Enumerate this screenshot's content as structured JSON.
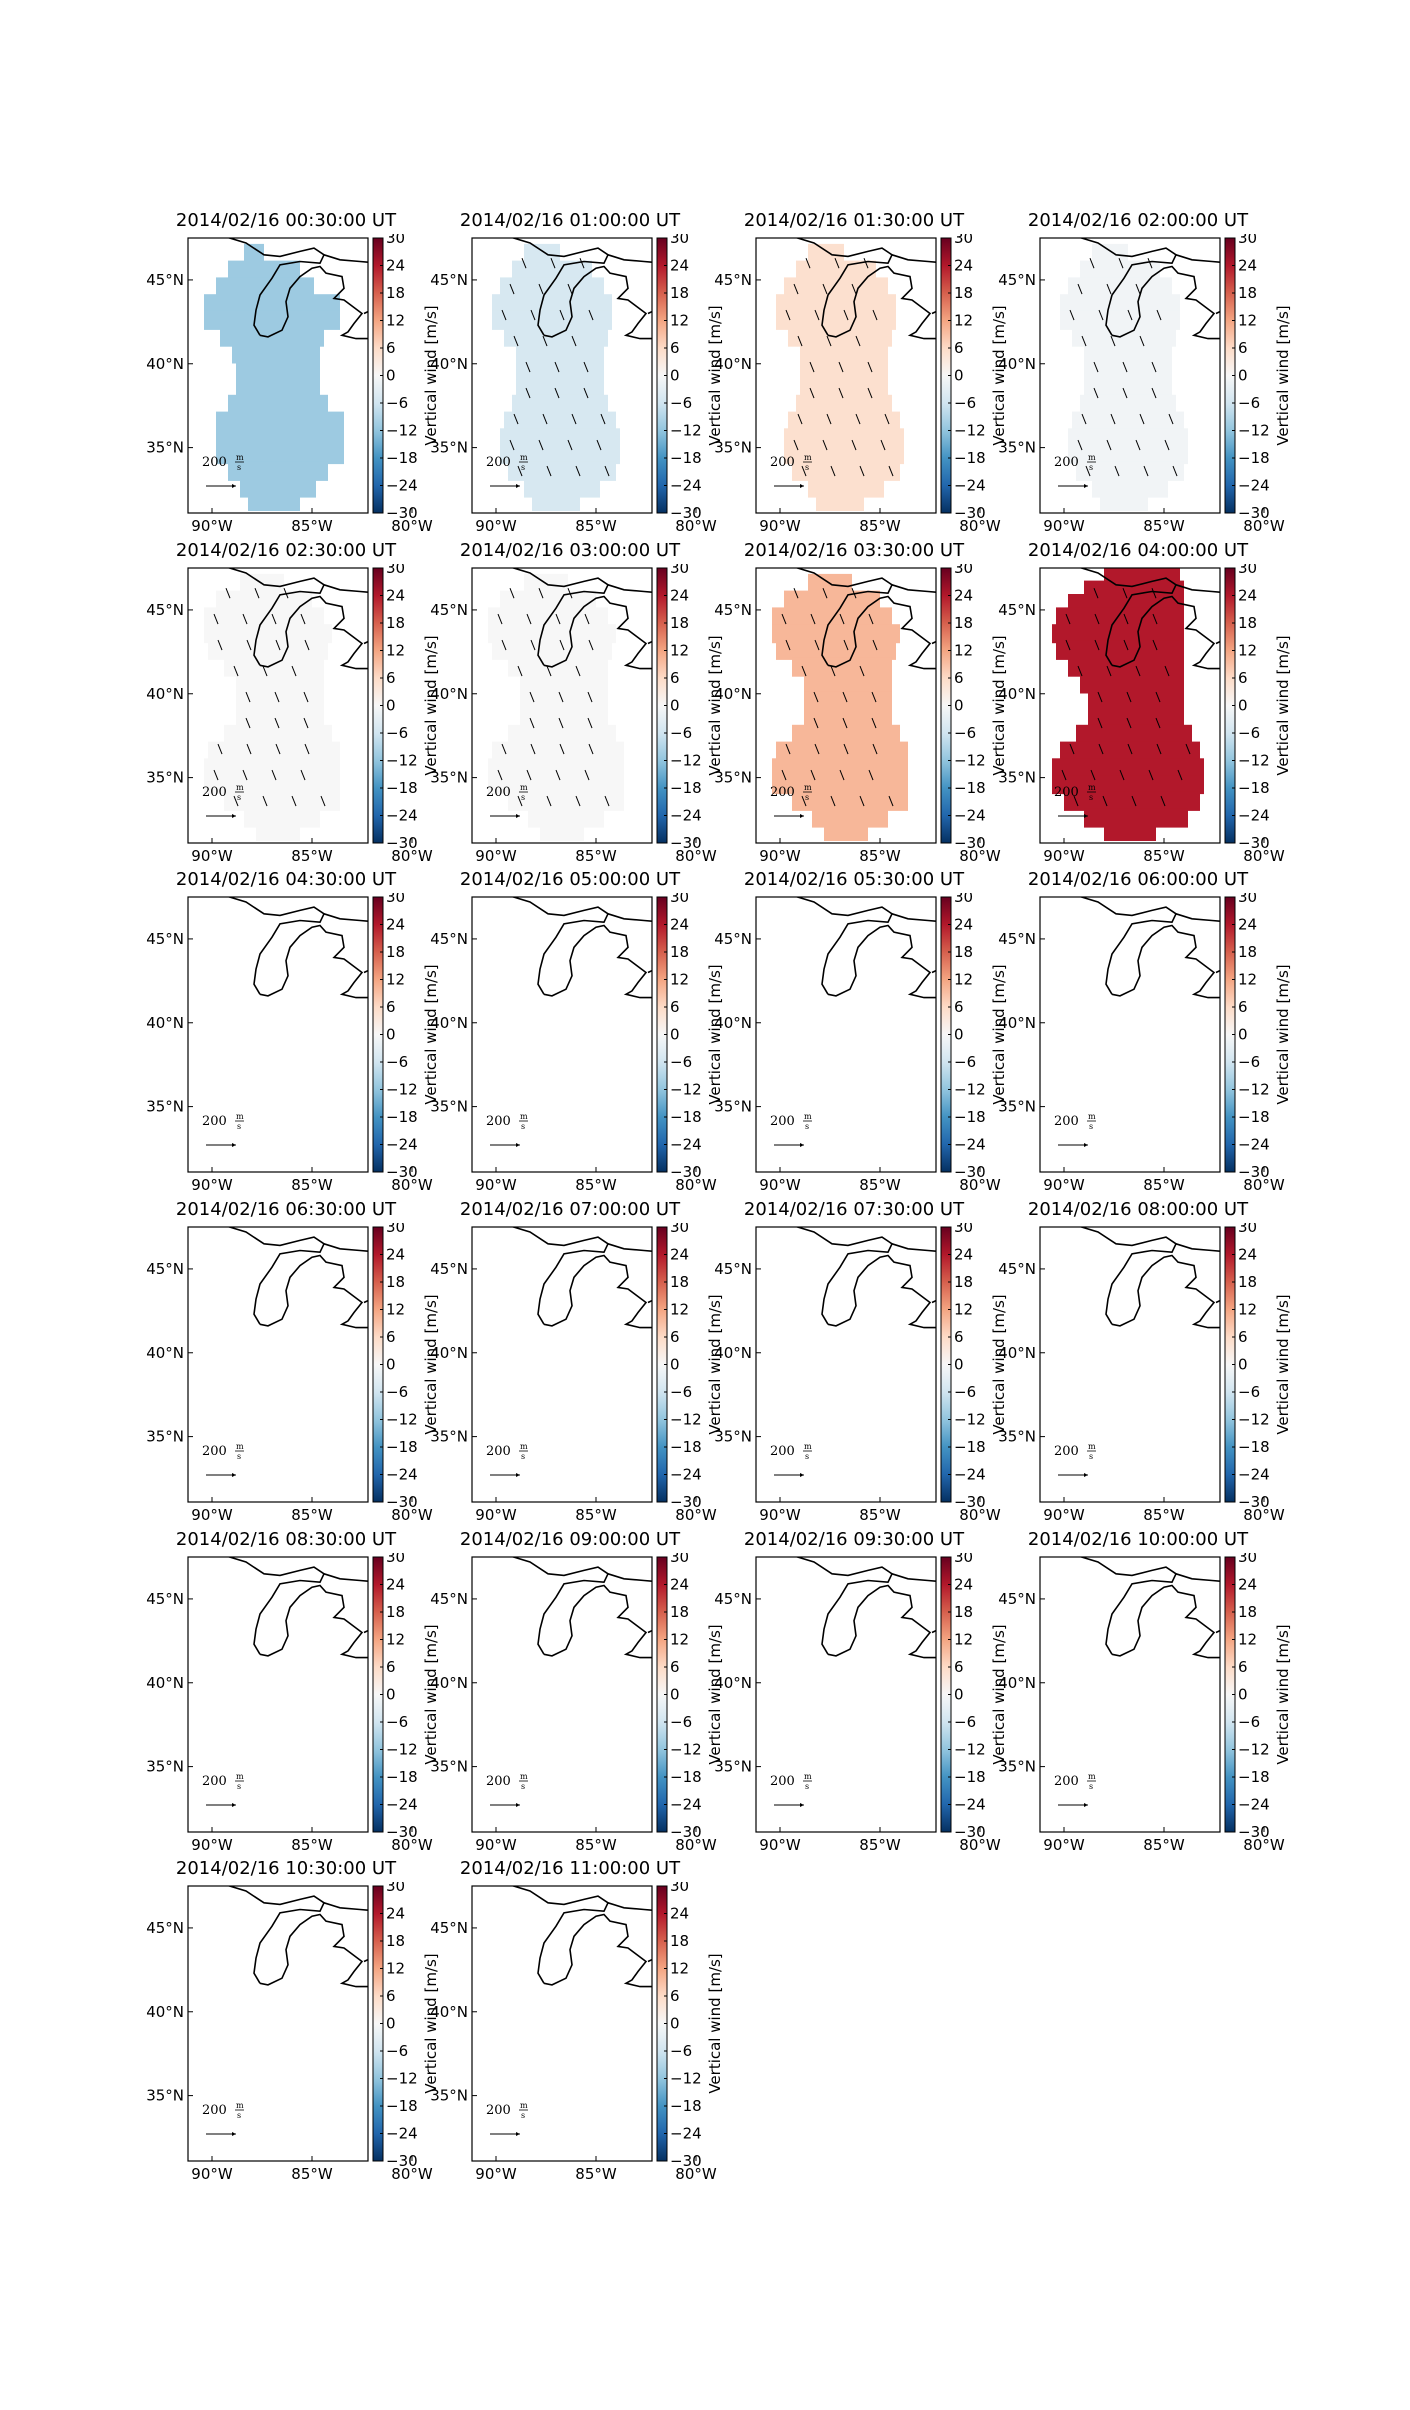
{
  "figure": {
    "colorbar": {
      "label": "Vertical wind [m/s]",
      "ticks": [
        30,
        24,
        18,
        12,
        6,
        0,
        -6,
        -12,
        -18,
        -24,
        -30
      ],
      "tick_labels": [
        "30",
        "24",
        "18",
        "12",
        "6",
        "0",
        "−6",
        "−12",
        "−18",
        "−24",
        "−30"
      ],
      "range": [
        -30,
        30
      ],
      "colormap": "red-white-blue"
    },
    "axes": {
      "lat_ticks": [
        "45°N",
        "40°N",
        "35°N"
      ],
      "lon_ticks": [
        "90°W",
        "85°W",
        "80°W"
      ]
    },
    "arrow_key": {
      "value": "200",
      "unit_num": "m",
      "unit_den": "s"
    },
    "panels": [
      {
        "title": "2014/02/16 00:30:00 UT",
        "value": -11,
        "data_shape": "a",
        "arrows": false
      },
      {
        "title": "2014/02/16 01:00:00 UT",
        "value": -5,
        "data_shape": "b",
        "arrows": true
      },
      {
        "title": "2014/02/16 01:30:00 UT",
        "value": 5,
        "data_shape": "b",
        "arrows": true
      },
      {
        "title": "2014/02/16 02:00:00 UT",
        "value": -1,
        "data_shape": "b",
        "arrows": true
      },
      {
        "title": "2014/02/16 02:30:00 UT",
        "value": 0,
        "data_shape": "c",
        "arrows": true
      },
      {
        "title": "2014/02/16 03:00:00 UT",
        "value": 0,
        "data_shape": "c",
        "arrows": true
      },
      {
        "title": "2014/02/16 03:30:00 UT",
        "value": 10,
        "data_shape": "c",
        "arrows": true
      },
      {
        "title": "2014/02/16 04:00:00 UT",
        "value": 24,
        "data_shape": "d",
        "arrows": true
      },
      {
        "title": "2014/02/16 04:30:00 UT",
        "value": null,
        "data_shape": null,
        "arrows": false
      },
      {
        "title": "2014/02/16 05:00:00 UT",
        "value": null,
        "data_shape": null,
        "arrows": false
      },
      {
        "title": "2014/02/16 05:30:00 UT",
        "value": null,
        "data_shape": null,
        "arrows": false
      },
      {
        "title": "2014/02/16 06:00:00 UT",
        "value": null,
        "data_shape": null,
        "arrows": false
      },
      {
        "title": "2014/02/16 06:30:00 UT",
        "value": null,
        "data_shape": null,
        "arrows": false
      },
      {
        "title": "2014/02/16 07:00:00 UT",
        "value": null,
        "data_shape": null,
        "arrows": false
      },
      {
        "title": "2014/02/16 07:30:00 UT",
        "value": null,
        "data_shape": null,
        "arrows": false
      },
      {
        "title": "2014/02/16 08:00:00 UT",
        "value": null,
        "data_shape": null,
        "arrows": false
      },
      {
        "title": "2014/02/16 08:30:00 UT",
        "value": null,
        "data_shape": null,
        "arrows": false
      },
      {
        "title": "2014/02/16 09:00:00 UT",
        "value": null,
        "data_shape": null,
        "arrows": false
      },
      {
        "title": "2014/02/16 09:30:00 UT",
        "value": null,
        "data_shape": null,
        "arrows": false
      },
      {
        "title": "2014/02/16 10:00:00 UT",
        "value": null,
        "data_shape": null,
        "arrows": false
      },
      {
        "title": "2014/02/16 10:30:00 UT",
        "value": null,
        "data_shape": null,
        "arrows": false
      },
      {
        "title": "2014/02/16 11:00:00 UT",
        "value": null,
        "data_shape": null,
        "arrows": false
      }
    ]
  }
}
